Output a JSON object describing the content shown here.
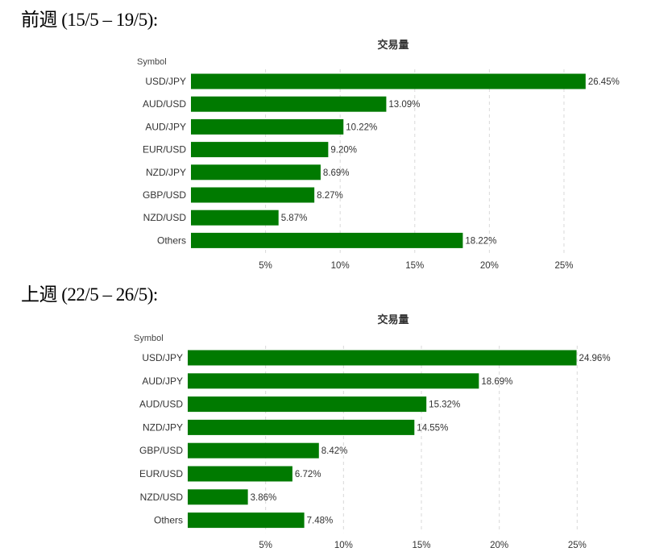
{
  "headings": {
    "prev_week": "前週 (15/5 – 19/5):",
    "last_week": "上週 (22/5 – 26/5):"
  },
  "chart_data": [
    {
      "type": "bar",
      "orientation": "horizontal",
      "title": "交易量",
      "axis_header": "Symbol",
      "categories": [
        "USD/JPY",
        "AUD/USD",
        "AUD/JPY",
        "EUR/USD",
        "NZD/JPY",
        "GBP/USD",
        "NZD/USD",
        "Others"
      ],
      "values": [
        26.45,
        13.09,
        10.22,
        9.2,
        8.69,
        8.27,
        5.87,
        18.22
      ],
      "value_labels": [
        "26.45%",
        "13.09%",
        "10.22%",
        "9.20%",
        "8.69%",
        "8.27%",
        "5.87%",
        "18.22%"
      ],
      "xticks": [
        5,
        10,
        15,
        20,
        25
      ],
      "xtick_labels": [
        "5%",
        "10%",
        "15%",
        "20%",
        "25%"
      ],
      "xlim": [
        0,
        27
      ],
      "grid": "vertical dashed",
      "color": "#007a00"
    },
    {
      "type": "bar",
      "orientation": "horizontal",
      "title": "交易量",
      "axis_header": "Symbol",
      "categories": [
        "USD/JPY",
        "AUD/JPY",
        "AUD/USD",
        "NZD/JPY",
        "GBP/USD",
        "EUR/USD",
        "NZD/USD",
        "Others"
      ],
      "values": [
        24.96,
        18.69,
        15.32,
        14.55,
        8.42,
        6.72,
        3.86,
        7.48
      ],
      "value_labels": [
        "24.96%",
        "18.69%",
        "15.32%",
        "14.55%",
        "8.42%",
        "6.72%",
        "3.86%",
        "7.48%"
      ],
      "xticks": [
        5,
        10,
        15,
        20,
        25
      ],
      "xtick_labels": [
        "5%",
        "10%",
        "15%",
        "20%",
        "25%"
      ],
      "xlim": [
        0,
        25.5
      ],
      "grid": "vertical dashed",
      "color": "#007a00"
    }
  ]
}
